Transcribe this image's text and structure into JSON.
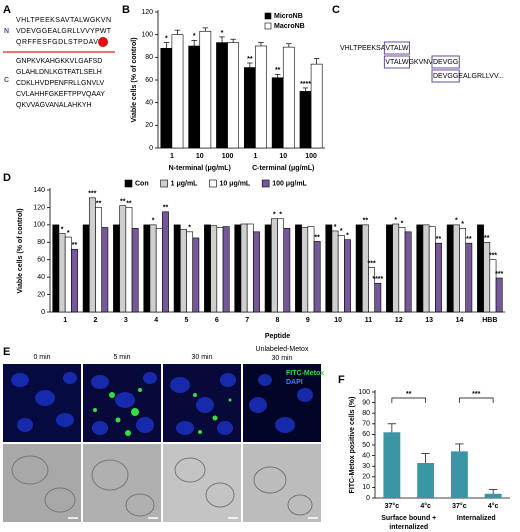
{
  "panel_labels": [
    "A",
    "B",
    "C",
    "D",
    "E",
    "F"
  ],
  "sequence_a": {
    "n_label": "N",
    "c_label": "C",
    "n_lines": [
      "VHLTPEEKSAVTALWGKVN",
      "VDEVGGEALGRLLVVYPWT",
      "QRFFESFGDLSTPDAV"
    ],
    "c_lines": [
      "GNPKVKAHGKKVLGAFSD",
      "GLAHLDNLKGTFATLSELH",
      "CDKLHVDPENFRLLGNVLV",
      "CVLAHHFGKEFTPPVQAAY",
      "QKVVAGVANALAHKYH"
    ]
  },
  "alignment_c": {
    "lines": [
      [
        {
          "text": "VHLTPEEKSA",
          "boxed": false
        },
        {
          "text": "VTALW",
          "boxed": true
        }
      ],
      [
        {
          "text": "VTALW",
          "boxed": true
        },
        {
          "text": "GKVNV",
          "boxed": false
        },
        {
          "text": "DEVGG",
          "boxed": true
        }
      ],
      [
        {
          "text": "DEVGG",
          "boxed": true
        },
        {
          "text": "EALGRLLVV...",
          "boxed": false
        }
      ]
    ]
  },
  "chart_data": [
    {
      "type": "bar",
      "y_label": "Viable cells (% of control)",
      "categories": [
        "1",
        "10",
        "100",
        "1",
        "10",
        "100"
      ],
      "groups": [
        {
          "label_lines": [
            "N-terminal (μg/mL)"
          ]
        },
        {
          "label_lines": [
            "C-terminal (μg/mL)"
          ]
        }
      ],
      "series": [
        {
          "name": "MicroNB",
          "color": "#000000",
          "values": [
            88,
            90,
            93,
            71,
            62,
            50
          ],
          "errors": [
            5,
            5,
            5,
            4,
            3,
            3
          ],
          "stars": [
            "*",
            "*",
            "*",
            "**",
            "**",
            "****"
          ]
        },
        {
          "name": "MacroNB",
          "color": "#ffffff",
          "values": [
            100,
            103,
            93,
            90,
            89,
            74
          ],
          "errors": [
            4,
            3,
            3,
            3,
            3,
            5
          ]
        }
      ],
      "ylim": [
        0,
        120
      ],
      "yticks": [
        0,
        20,
        40,
        60,
        80,
        100,
        120
      ],
      "legend": "top-right"
    },
    {
      "type": "bar",
      "y_label": "Viable cells (% of control)",
      "x_label": "Peptide",
      "categories": [
        "1",
        "2",
        "3",
        "4",
        "5",
        "6",
        "7",
        "8",
        "9",
        "10",
        "11",
        "12",
        "13",
        "14",
        "HBB"
      ],
      "series": [
        {
          "name": "Con",
          "color": "#000000",
          "values": [
            100,
            100,
            100,
            100,
            100,
            100,
            100,
            100,
            100,
            100,
            100,
            100,
            100,
            100,
            100
          ]
        },
        {
          "name": "1 μg/mL",
          "color": "#cfcfcf",
          "values": [
            90,
            131,
            122,
            100,
            95,
            99,
            101,
            107,
            97,
            93,
            100,
            101,
            100,
            100,
            80
          ],
          "stars": [
            "*",
            "***",
            "**",
            "*",
            null,
            null,
            null,
            "*",
            null,
            "*",
            "**",
            "*",
            null,
            "*",
            "**"
          ]
        },
        {
          "name": "10 μg/mL",
          "color": "#ffffff",
          "values": [
            86,
            120,
            120,
            96,
            92,
            97,
            101,
            107,
            98,
            88,
            51,
            97,
            98,
            96,
            60
          ],
          "stars": [
            "*",
            "**",
            "**",
            null,
            "*",
            null,
            null,
            "*",
            null,
            "*",
            "***",
            "*",
            null,
            "*",
            "***"
          ]
        },
        {
          "name": "100 μg/mL",
          "color": "#76589a",
          "values": [
            72,
            97,
            96,
            115,
            85,
            98,
            92,
            96,
            81,
            83,
            33,
            92,
            79,
            79,
            39
          ],
          "stars": [
            "**",
            null,
            null,
            "**",
            null,
            null,
            null,
            null,
            "**",
            "*",
            "****",
            null,
            "**",
            "**",
            "***"
          ]
        }
      ],
      "ylim": [
        0,
        140
      ],
      "yticks": [
        0,
        20,
        40,
        60,
        80,
        100,
        120,
        140
      ],
      "legend": "top"
    },
    {
      "type": "bar",
      "y_label": "FITC-Metox positive cells (%)",
      "categories": [
        "37°c",
        "4°c",
        "37°c",
        "4°c"
      ],
      "values": [
        62,
        33,
        44,
        4
      ],
      "errors": [
        8,
        9,
        7,
        4
      ],
      "color": "#3a95a4",
      "groups": [
        {
          "label_lines": [
            "Surface bound +",
            "internalized"
          ],
          "significance": "**"
        },
        {
          "label_lines": [
            "Internalized"
          ],
          "significance": "***"
        }
      ],
      "ylim": [
        0,
        100
      ],
      "yticks": [
        0,
        10,
        20,
        30,
        40,
        50,
        60,
        70,
        80,
        90,
        100
      ]
    }
  ],
  "microscopy_e": {
    "titles": [
      "0 min",
      "5 min",
      "30 min"
    ],
    "title_last_lines": [
      "Unlabeled-Metox",
      "30 min"
    ],
    "legend": [
      "FITC-Metox",
      "DAPI"
    ]
  }
}
